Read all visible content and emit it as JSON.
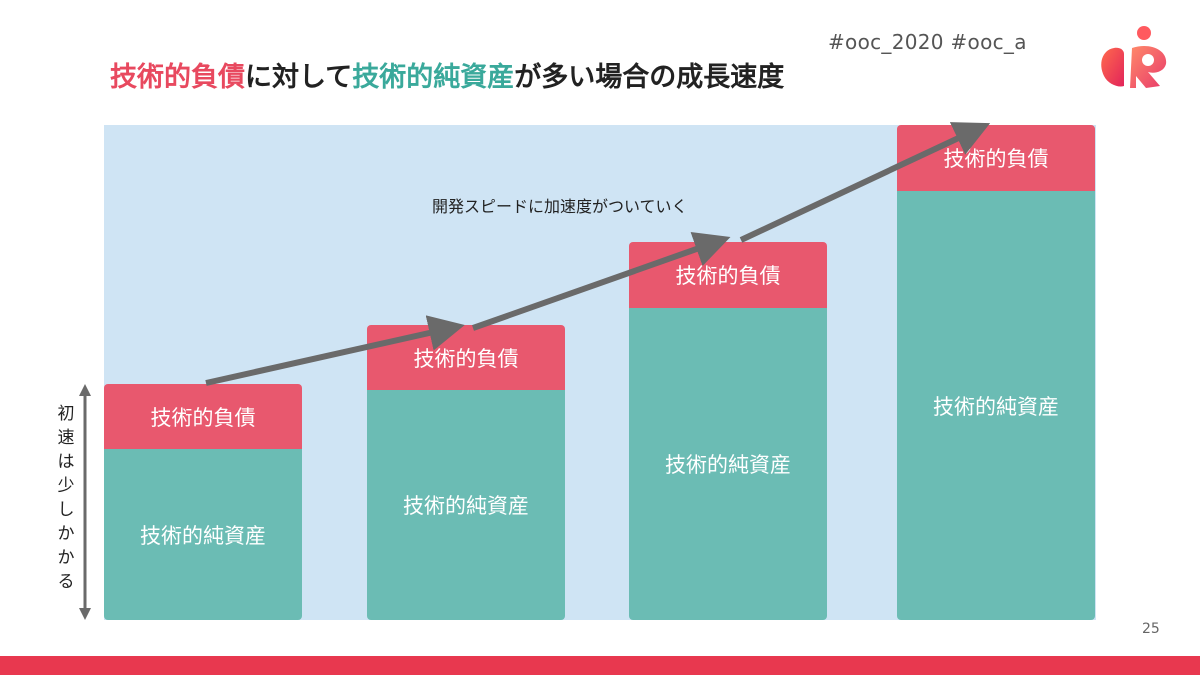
{
  "header": {
    "hashtags": "#ooc_2020 #ooc_a",
    "title_part1": "技術的負債",
    "title_part2": "に対して",
    "title_part3": "技術的純資産",
    "title_part4": "が多い場合の成長速度"
  },
  "diagram": {
    "caption": "開発スピードに加速度がついていく",
    "side_label": "初速は少しかかる",
    "bars": [
      {
        "debt": "技術的負債",
        "asset": "技術的純資産"
      },
      {
        "debt": "技術的負債",
        "asset": "技術的純資産"
      },
      {
        "debt": "技術的負債",
        "asset": "技術的純資産"
      },
      {
        "debt": "技術的負債",
        "asset": "技術的純資産"
      }
    ]
  },
  "footer": {
    "page_number": "25"
  },
  "colors": {
    "debt": "#e8586e",
    "asset": "#6bbcb4",
    "panel": "#cfe4f4",
    "accent": "#e8384f",
    "arrow": "#6a6a6a"
  },
  "icons": {
    "logo": "brand-logo-icon"
  }
}
